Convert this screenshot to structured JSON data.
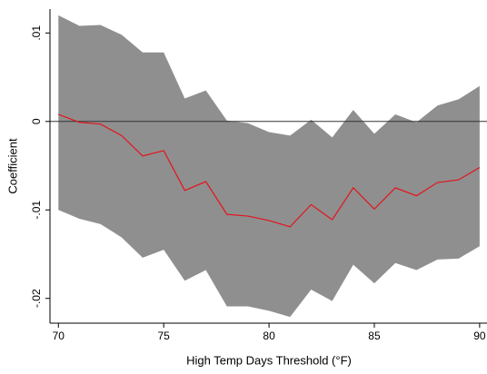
{
  "chart_data": {
    "type": "line",
    "x_label": "High Temp Days Threshold (°F)",
    "y_label": "Coefficient",
    "x": [
      70,
      71,
      72,
      73,
      74,
      75,
      76,
      77,
      78,
      79,
      80,
      81,
      82,
      83,
      84,
      85,
      86,
      87,
      88,
      89,
      90
    ],
    "values": [
      0.0008,
      -0.0001,
      -0.0003,
      -0.0016,
      -0.0039,
      -0.0033,
      -0.0078,
      -0.0068,
      -0.0105,
      -0.0107,
      -0.0112,
      -0.0119,
      -0.0094,
      -0.0111,
      -0.0075,
      -0.0099,
      -0.0075,
      -0.0084,
      -0.0069,
      -0.0066,
      -0.0052
    ],
    "color": "#e3141c",
    "band": {
      "upper": [
        0.012,
        0.0108,
        0.0109,
        0.0098,
        0.0078,
        0.0078,
        0.0026,
        0.0035,
        0.0001,
        -0.0002,
        -0.0012,
        -0.0016,
        0.0002,
        -0.0018,
        0.0013,
        -0.0014,
        0.0008,
        -0.0001,
        0.0018,
        0.0025,
        0.004
      ],
      "lower": [
        -0.01,
        -0.011,
        -0.0116,
        -0.0131,
        -0.0154,
        -0.0145,
        -0.018,
        -0.0168,
        -0.0209,
        -0.0209,
        -0.0214,
        -0.0221,
        -0.019,
        -0.0203,
        -0.0162,
        -0.0183,
        -0.016,
        -0.0168,
        -0.0156,
        -0.0155,
        -0.0141
      ],
      "color": "#8f8f8f"
    },
    "reference_line": 0,
    "xlim": [
      69.6,
      90.35
    ],
    "ylim": [
      -0.0228,
      0.0127
    ],
    "xticks": [
      70,
      75,
      80,
      85,
      90
    ],
    "yticks": [
      {
        "value": 0.01,
        "label": ".01"
      },
      0,
      {
        "value": -0.01,
        "label": "-.01"
      },
      {
        "value": -0.02,
        "label": "-.02"
      }
    ]
  }
}
